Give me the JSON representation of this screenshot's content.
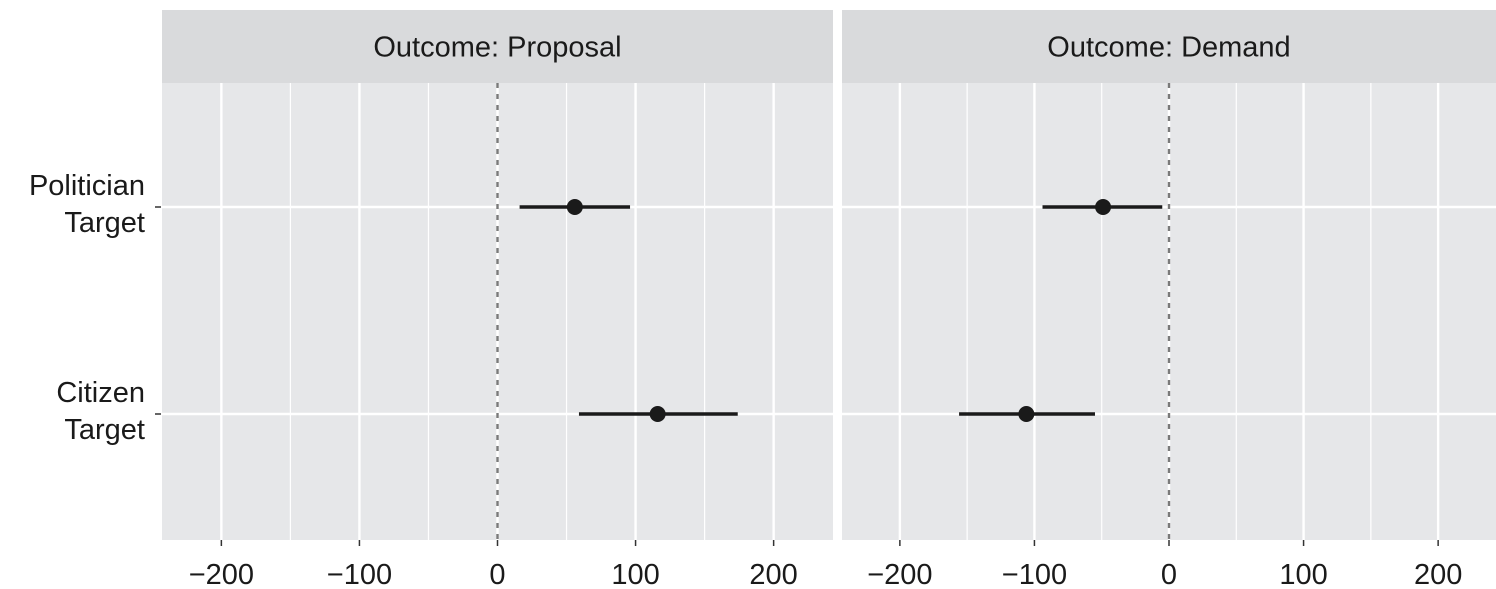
{
  "chart_data": {
    "type": "scatter",
    "subtype": "coefficient-plot-with-error-bars",
    "categories": [
      [
        "Politician",
        "Target"
      ],
      [
        "Citizen",
        "Target"
      ]
    ],
    "panels": [
      {
        "title": "Outcome: Proposal",
        "points": [
          {
            "estimate": 56,
            "lower": 16,
            "upper": 96
          },
          {
            "estimate": 116,
            "lower": 59,
            "upper": 174
          }
        ]
      },
      {
        "title": "Outcome: Demand",
        "points": [
          {
            "estimate": -49,
            "lower": -94,
            "upper": -5
          },
          {
            "estimate": -106,
            "lower": -156,
            "upper": -55
          }
        ]
      }
    ],
    "x_ticks": [
      "−200",
      "−100",
      "0",
      "100",
      "200"
    ],
    "x_tick_values": [
      -200,
      -100,
      0,
      100,
      200
    ],
    "xlim": [
      -243,
      243
    ],
    "reference_line": 0,
    "xlabel": "",
    "ylabel": "",
    "grid": true,
    "legend": "none",
    "colors": {
      "panel_background": "#e6e7e9",
      "strip_background": "#d9dadc",
      "grid": "#ffffff",
      "point": "#1a1a1a",
      "reference_line": "#7a7a7a"
    }
  }
}
